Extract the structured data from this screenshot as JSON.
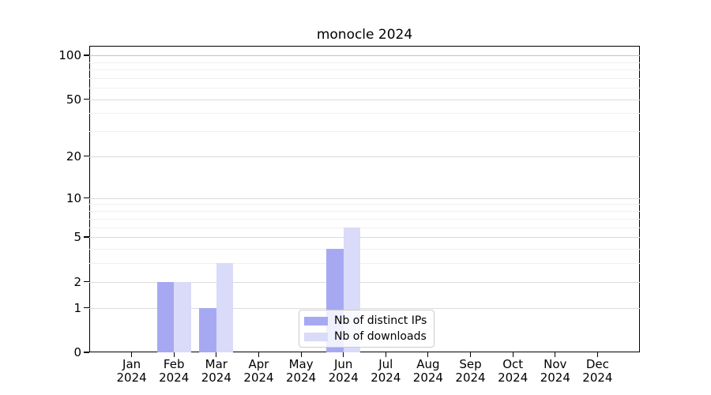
{
  "chart_data": {
    "type": "bar",
    "title": "monocle 2024",
    "categories": [
      "Jan 2024",
      "Feb 2024",
      "Mar 2024",
      "Apr 2024",
      "May 2024",
      "Jun 2024",
      "Jul 2024",
      "Aug 2024",
      "Sep 2024",
      "Oct 2024",
      "Nov 2024",
      "Dec 2024"
    ],
    "series": [
      {
        "name": "Nb of distinct IPs",
        "color": "#a6a9f1",
        "values": [
          0,
          2,
          1,
          0,
          0,
          4,
          0,
          0,
          0,
          0,
          0,
          0
        ]
      },
      {
        "name": "Nb of downloads",
        "color": "#d9dbf9",
        "values": [
          0,
          2,
          3,
          0,
          0,
          6,
          0,
          0,
          0,
          0,
          0,
          0
        ]
      }
    ],
    "xlabel": "",
    "ylabel": "",
    "yscale": "log1p",
    "ylim": [
      0,
      116
    ],
    "yticks_major": [
      0,
      1,
      2,
      5,
      10,
      20,
      50,
      100
    ],
    "yticks_minor": [
      3,
      4,
      6,
      7,
      8,
      9,
      30,
      40,
      60,
      70,
      80,
      90
    ],
    "grid": true,
    "legend_position": "lower center"
  },
  "colors": {
    "grid_major": "#dbdbdb",
    "grid_minor": "#f0f0f0",
    "grid_top": "#c2c2c2",
    "axis": "#000000"
  }
}
